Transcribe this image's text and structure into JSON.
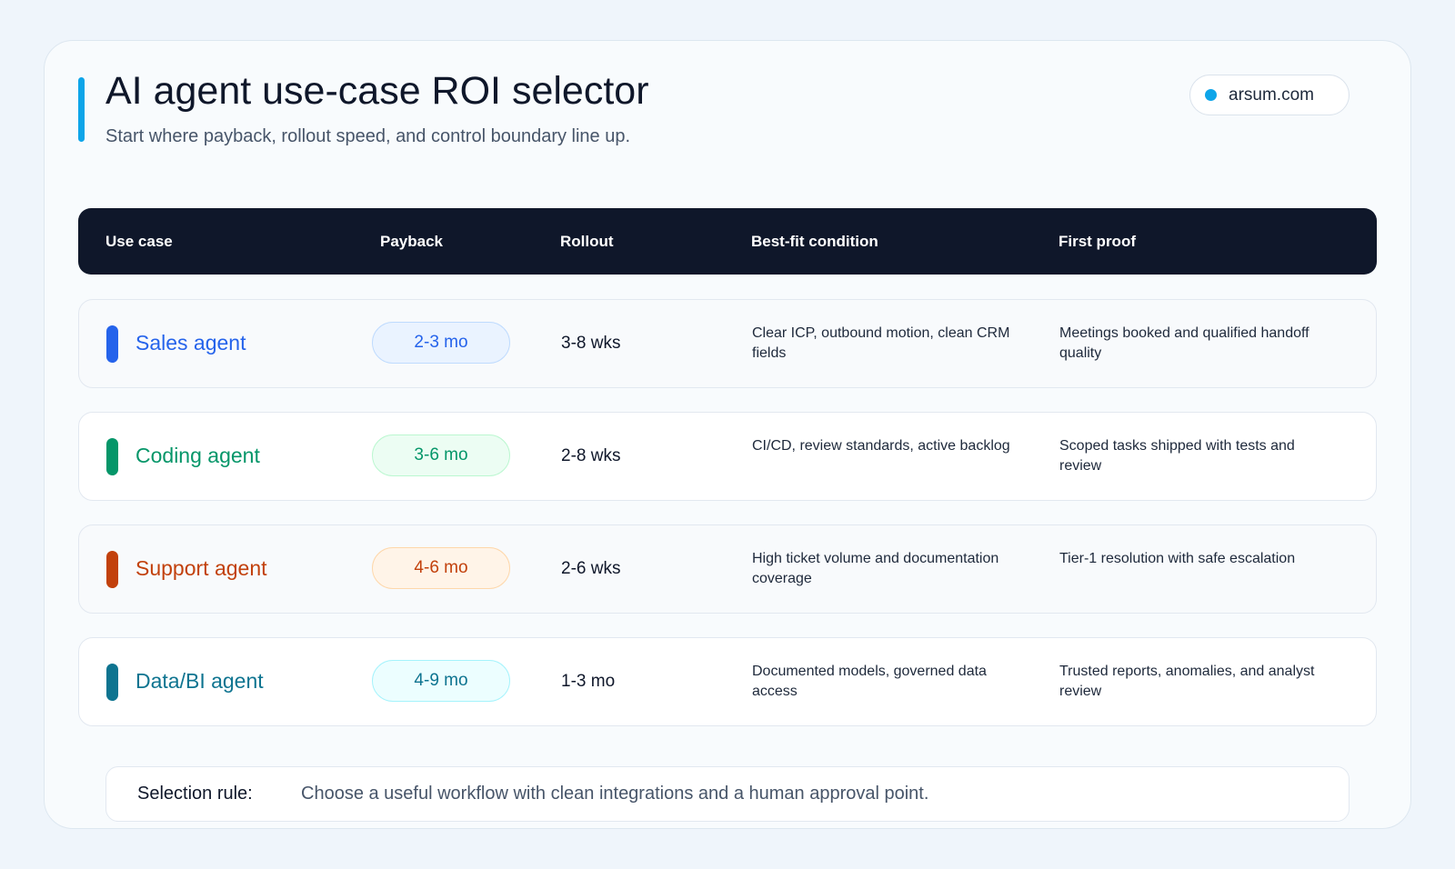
{
  "header": {
    "title": "AI agent use-case ROI selector",
    "subtitle": "Start where payback, rollout speed, and control boundary line up.",
    "badge": "arsum.com"
  },
  "table": {
    "columns": [
      "Use case",
      "Payback",
      "Rollout",
      "Best-fit condition",
      "First proof"
    ],
    "rows": [
      {
        "name": "Sales agent",
        "payback": "2-3 mo",
        "rollout": "3-8 wks",
        "condition": "Clear ICP, outbound motion, clean CRM fields",
        "proof": "Meetings booked and qualified handoff quality",
        "color": "#2563eb",
        "pill_bg": "#eaf3ff",
        "pill_border": "#bfdbfe"
      },
      {
        "name": "Coding agent",
        "payback": "3-6 mo",
        "rollout": "2-8 wks",
        "condition": "CI/CD, review standards, active backlog",
        "proof": "Scoped tasks shipped with tests and review",
        "color": "#059669",
        "pill_bg": "#ecfdf3",
        "pill_border": "#bbf7d0"
      },
      {
        "name": "Support agent",
        "payback": "4-6 mo",
        "rollout": "2-6 wks",
        "condition": "High ticket volume and documentation coverage",
        "proof": "Tier-1 resolution with safe escalation",
        "color": "#c2410c",
        "pill_bg": "#fff4e8",
        "pill_border": "#fed7aa"
      },
      {
        "name": "Data/BI agent",
        "payback": "4-9 mo",
        "rollout": "1-3 mo",
        "condition": "Documented models, governed data access",
        "proof": "Trusted reports, anomalies, and analyst review",
        "color": "#0e7490",
        "pill_bg": "#ecfeff",
        "pill_border": "#a5f3fc"
      }
    ]
  },
  "footer": {
    "label": "Selection rule:",
    "text": "Choose a useful workflow with clean integrations and a human approval point."
  }
}
